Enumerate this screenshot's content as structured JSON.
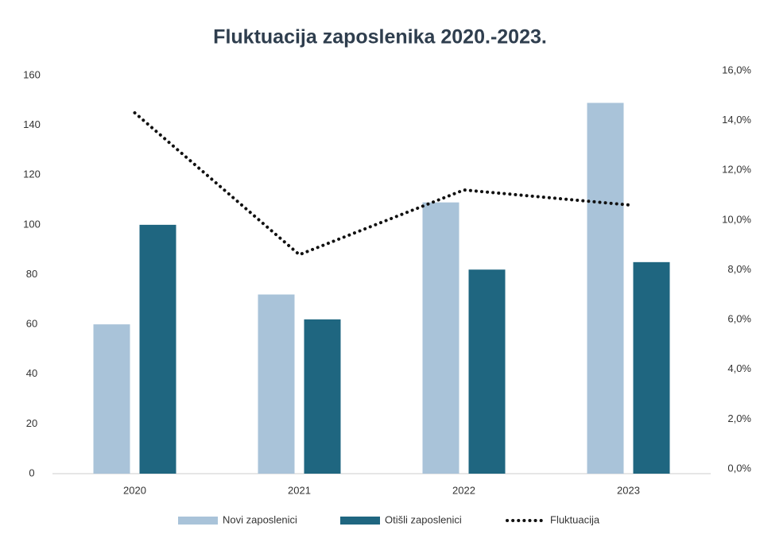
{
  "chart_data": {
    "type": "bar",
    "title": "Fluktuacija zaposlenika 2020.-2023.",
    "categories": [
      "2020",
      "2021",
      "2022",
      "2023"
    ],
    "series": [
      {
        "name": "Novi zaposlenici",
        "type": "bar",
        "color": "#a9c3d9",
        "values": [
          60,
          72,
          109,
          149
        ]
      },
      {
        "name": "Otišli zaposlenici",
        "type": "bar",
        "color": "#1f6680",
        "values": [
          100,
          62,
          82,
          85
        ]
      },
      {
        "name": "Fluktuacija",
        "type": "line",
        "axis": "y2",
        "line_style": "dotted",
        "color": "#111111",
        "values": [
          14.5,
          8.8,
          11.4,
          10.8
        ]
      }
    ],
    "ylim": [
      0,
      160
    ],
    "yticks": [
      0,
      20,
      40,
      60,
      80,
      100,
      120,
      140,
      160
    ],
    "y2lim": [
      0,
      16
    ],
    "y2ticks": [
      {
        "value": 0,
        "label": "0,0%"
      },
      {
        "value": 2,
        "label": "2,0%"
      },
      {
        "value": 4,
        "label": "4,0%"
      },
      {
        "value": 6,
        "label": "6,0%"
      },
      {
        "value": 8,
        "label": "8,0%"
      },
      {
        "value": 10,
        "label": "10,0%"
      },
      {
        "value": 12,
        "label": "12,0%"
      },
      {
        "value": 14,
        "label": "14,0%"
      },
      {
        "value": 16,
        "label": "16,0%"
      }
    ],
    "grid": false,
    "legend": "bottom"
  }
}
